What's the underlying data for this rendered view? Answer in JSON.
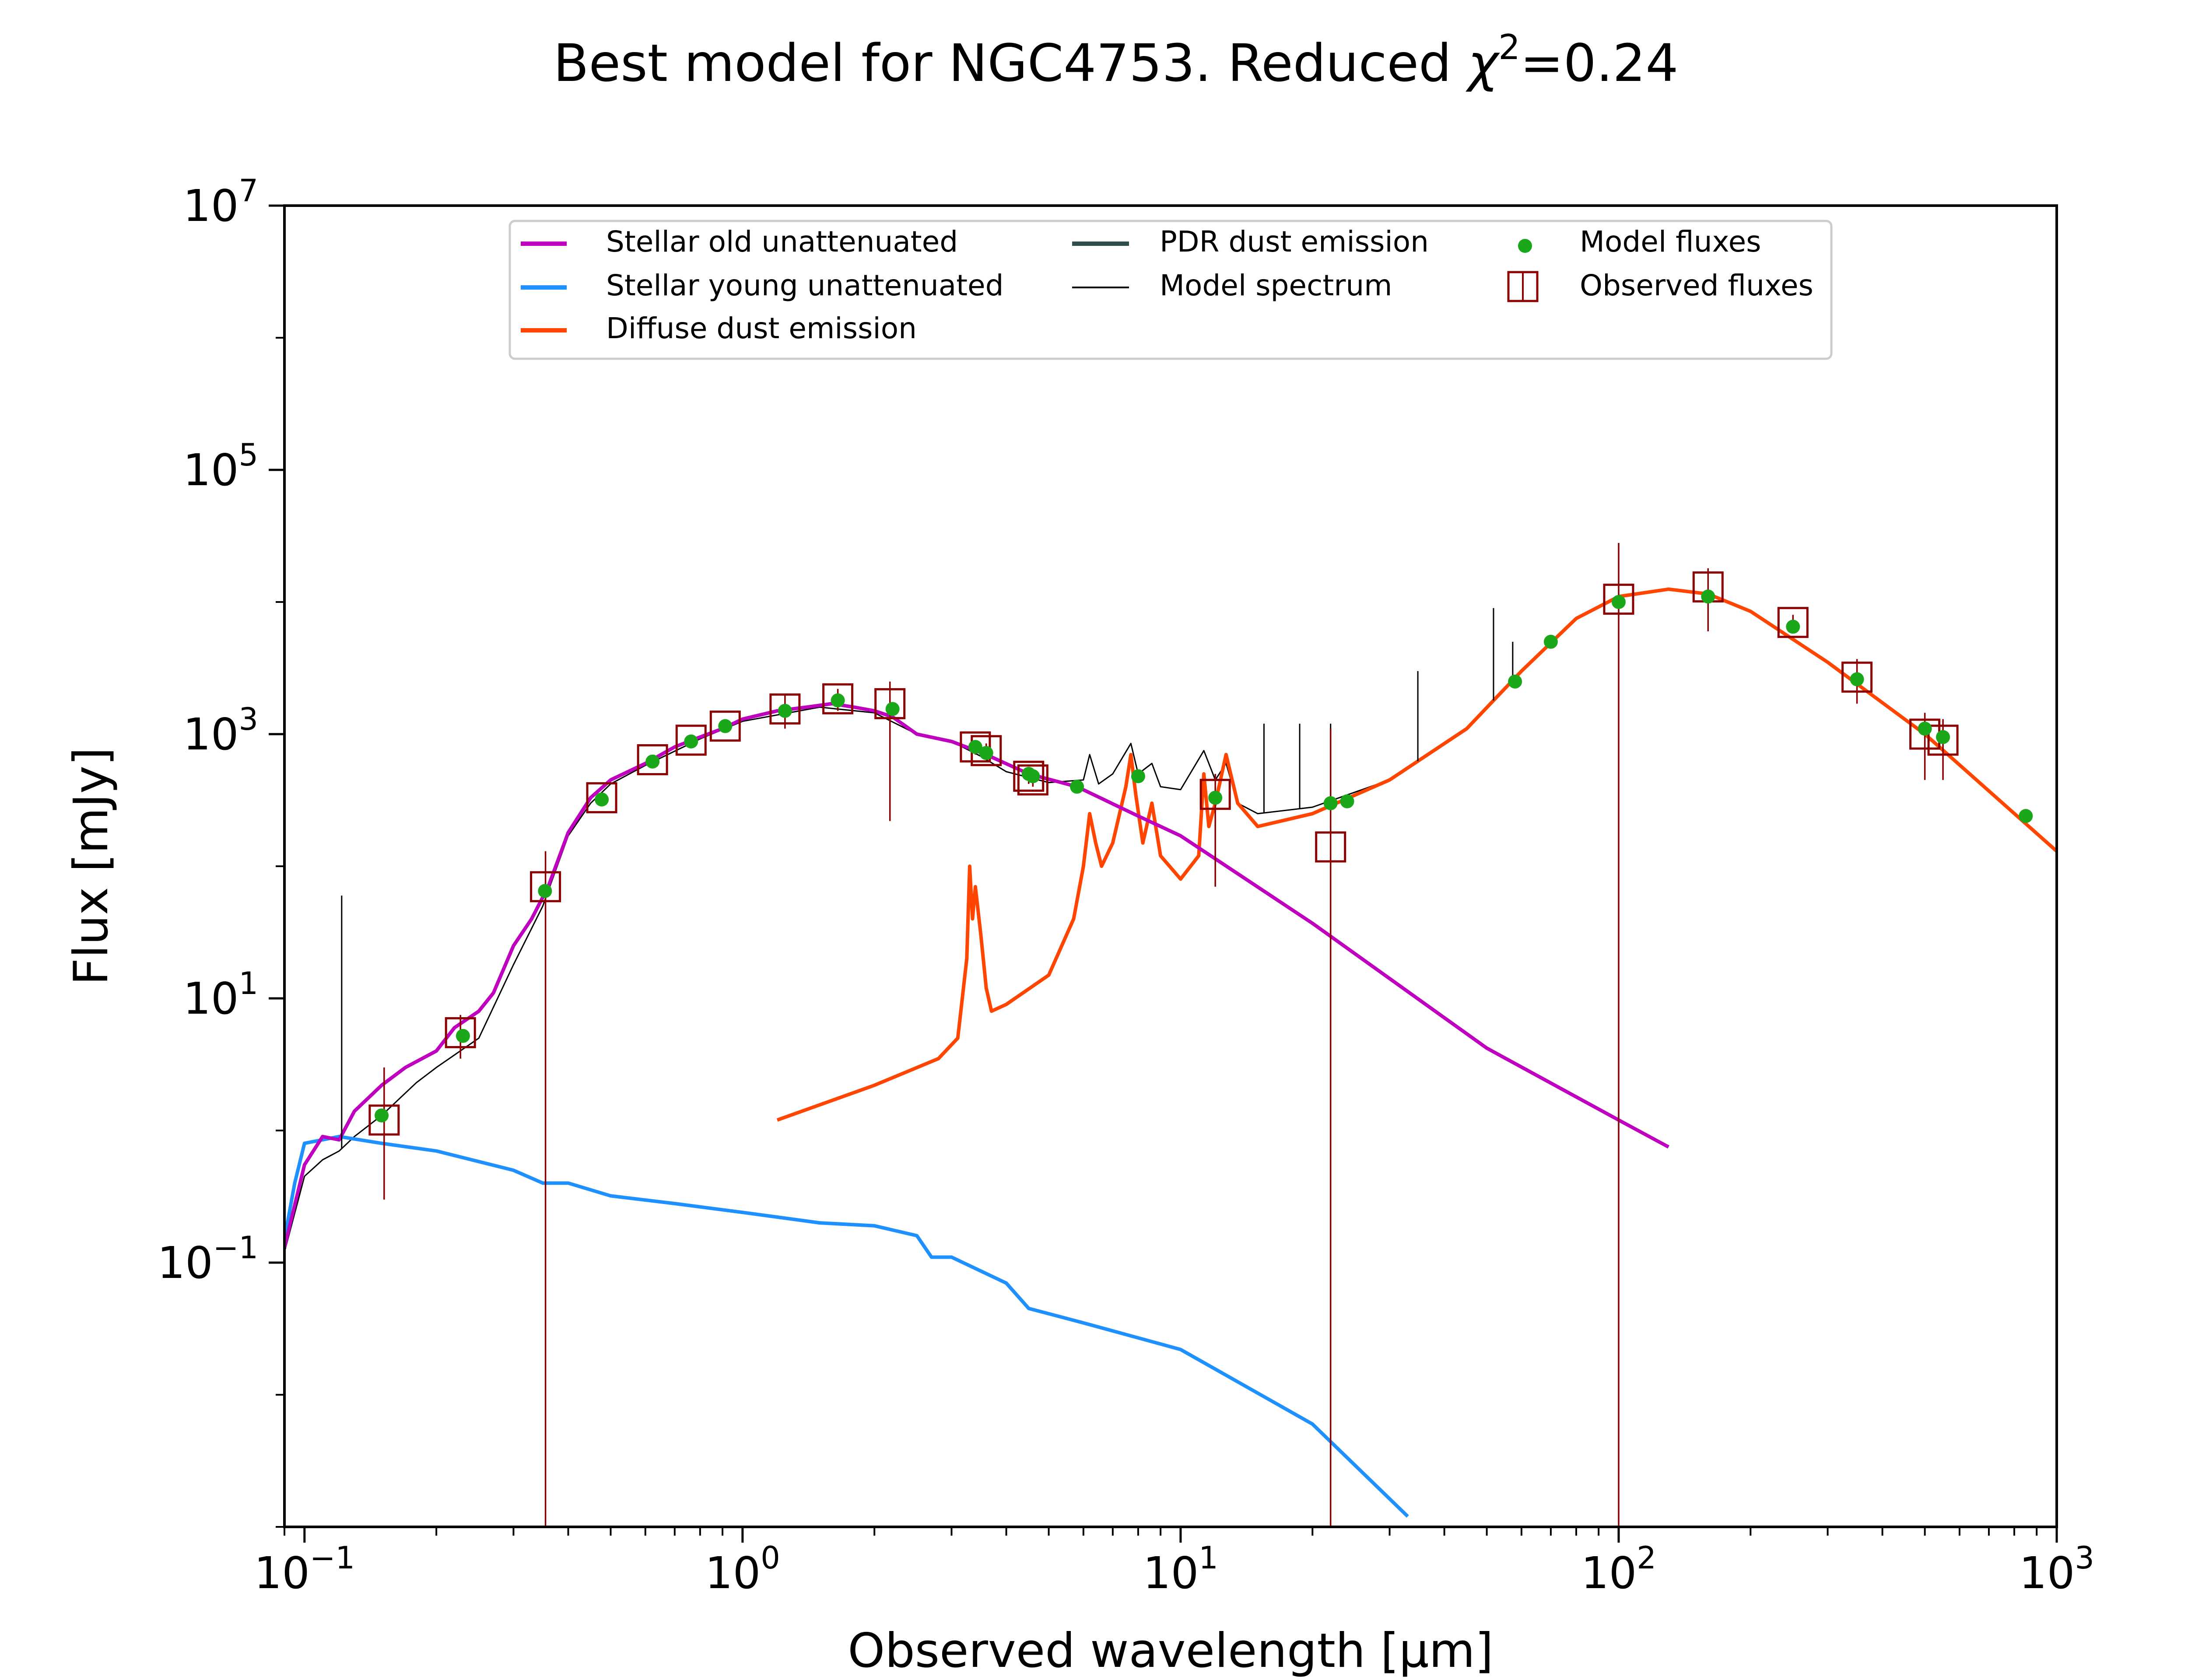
{
  "chart_data": {
    "type": "line",
    "title": "Best model for NGC4753. Reduced χ²=0.24",
    "title_parts": {
      "prefix": "Best model for NGC4753. Reduced ",
      "symbol": "χ",
      "exponent": "2",
      "suffix": "=0.24"
    },
    "xlabel": "Observed wavelength [μm]",
    "ylabel": "Flux [mJy]",
    "xscale": "log",
    "yscale": "log",
    "xlim": [
      0.09,
      1000
    ],
    "ylim": [
      0.001,
      10000000
    ],
    "x_ticks": [
      {
        "value": 0.1,
        "base": "10",
        "exp": "−1"
      },
      {
        "value": 1,
        "base": "10",
        "exp": "0"
      },
      {
        "value": 10,
        "base": "10",
        "exp": "1"
      },
      {
        "value": 100,
        "base": "10",
        "exp": "2"
      },
      {
        "value": 1000,
        "base": "10",
        "exp": "3"
      }
    ],
    "y_ticks": [
      {
        "value": 0.1,
        "base": "10",
        "exp": "−1"
      },
      {
        "value": 10,
        "base": "10",
        "exp": "1"
      },
      {
        "value": 1000,
        "base": "10",
        "exp": "3"
      },
      {
        "value": 100000,
        "base": "10",
        "exp": "5"
      },
      {
        "value": 10000000,
        "base": "10",
        "exp": "7"
      }
    ],
    "legend": {
      "placement": "top-center",
      "entries": [
        {
          "label": "Stellar old unattenuated",
          "color": "#bf00bf",
          "style": "line"
        },
        {
          "label": "Stellar young unattenuated",
          "color": "#1e90ff",
          "style": "line"
        },
        {
          "label": "Diffuse dust emission",
          "color": "#ff4500",
          "style": "line"
        },
        {
          "label": "PDR dust emission",
          "color": "#2f4f4f",
          "style": "line"
        },
        {
          "label": "Model spectrum",
          "color": "#000000",
          "style": "thin-line"
        },
        {
          "label": "Model fluxes",
          "color": "#1aa81a",
          "style": "dot"
        },
        {
          "label": "Observed fluxes",
          "color": "#8b0000",
          "style": "square"
        }
      ]
    },
    "series": [
      {
        "name": "Stellar old unattenuated",
        "color": "#bf00bf",
        "points": [
          [
            0.09,
            0.13
          ],
          [
            0.1,
            0.55
          ],
          [
            0.11,
            0.9
          ],
          [
            0.12,
            0.85
          ],
          [
            0.13,
            1.4
          ],
          [
            0.15,
            2.2
          ],
          [
            0.17,
            3
          ],
          [
            0.2,
            4
          ],
          [
            0.22,
            6
          ],
          [
            0.25,
            8
          ],
          [
            0.27,
            11
          ],
          [
            0.3,
            25
          ],
          [
            0.33,
            40
          ],
          [
            0.36,
            70
          ],
          [
            0.4,
            180
          ],
          [
            0.45,
            330
          ],
          [
            0.5,
            450
          ],
          [
            0.6,
            600
          ],
          [
            0.7,
            800
          ],
          [
            0.8,
            950
          ],
          [
            0.9,
            1100
          ],
          [
            1.0,
            1300
          ],
          [
            1.2,
            1500
          ],
          [
            1.4,
            1600
          ],
          [
            1.6,
            1700
          ],
          [
            1.8,
            1600
          ],
          [
            2.0,
            1500
          ],
          [
            2.2,
            1350
          ],
          [
            2.5,
            1000
          ],
          [
            3.0,
            880
          ],
          [
            3.6,
            700
          ],
          [
            4.5,
            500
          ],
          [
            5.8,
            400
          ],
          [
            8.0,
            240
          ],
          [
            10,
            170
          ],
          [
            20,
            37
          ],
          [
            50,
            4.2
          ],
          [
            100,
            1.2
          ],
          [
            130,
            0.75
          ]
        ]
      },
      {
        "name": "Stellar young unattenuated",
        "color": "#1e90ff",
        "points": [
          [
            0.09,
            0.15
          ],
          [
            0.095,
            0.4
          ],
          [
            0.1,
            0.8
          ],
          [
            0.12,
            0.9
          ],
          [
            0.15,
            0.8
          ],
          [
            0.2,
            0.7
          ],
          [
            0.3,
            0.5
          ],
          [
            0.35,
            0.4
          ],
          [
            0.4,
            0.4
          ],
          [
            0.5,
            0.32
          ],
          [
            0.7,
            0.28
          ],
          [
            1.0,
            0.24
          ],
          [
            1.5,
            0.2
          ],
          [
            2.0,
            0.19
          ],
          [
            2.5,
            0.16
          ],
          [
            2.7,
            0.11
          ],
          [
            3.0,
            0.11
          ],
          [
            4.0,
            0.07
          ],
          [
            4.5,
            0.045
          ],
          [
            6.0,
            0.035
          ],
          [
            10,
            0.022
          ],
          [
            20,
            0.006
          ],
          [
            33,
            0.0012
          ]
        ]
      },
      {
        "name": "Diffuse dust emission",
        "color": "#ff4500",
        "points": [
          [
            1.2,
            1.2
          ],
          [
            2.0,
            2.2
          ],
          [
            2.8,
            3.5
          ],
          [
            3.1,
            5
          ],
          [
            3.25,
            20
          ],
          [
            3.3,
            100
          ],
          [
            3.35,
            40
          ],
          [
            3.4,
            70
          ],
          [
            3.5,
            30
          ],
          [
            3.6,
            12
          ],
          [
            3.7,
            8
          ],
          [
            4.0,
            9
          ],
          [
            5.0,
            15
          ],
          [
            5.7,
            40
          ],
          [
            6.0,
            100
          ],
          [
            6.2,
            250
          ],
          [
            6.4,
            150
          ],
          [
            6.6,
            100
          ],
          [
            7.0,
            150
          ],
          [
            7.5,
            400
          ],
          [
            7.7,
            700
          ],
          [
            7.9,
            350
          ],
          [
            8.2,
            150
          ],
          [
            8.6,
            300
          ],
          [
            9.0,
            120
          ],
          [
            10,
            80
          ],
          [
            11,
            120
          ],
          [
            11.3,
            500
          ],
          [
            11.6,
            200
          ],
          [
            12,
            300
          ],
          [
            12.7,
            700
          ],
          [
            13.5,
            300
          ],
          [
            15,
            200
          ],
          [
            20,
            250
          ],
          [
            30,
            450
          ],
          [
            45,
            1100
          ],
          [
            60,
            3000
          ],
          [
            80,
            7500
          ],
          [
            100,
            11000
          ],
          [
            130,
            12500
          ],
          [
            160,
            11500
          ],
          [
            200,
            8500
          ],
          [
            300,
            3500
          ],
          [
            500,
            1000
          ],
          [
            1000,
            130
          ]
        ]
      },
      {
        "name": "Model spectrum",
        "color": "#000000",
        "points": [
          [
            0.09,
            0.12
          ],
          [
            0.1,
            0.45
          ],
          [
            0.11,
            0.6
          ],
          [
            0.12,
            0.7
          ],
          [
            0.13,
            0.9
          ],
          [
            0.15,
            1.3
          ],
          [
            0.18,
            2.3
          ],
          [
            0.2,
            3
          ],
          [
            0.25,
            5
          ],
          [
            0.3,
            18
          ],
          [
            0.35,
            50
          ],
          [
            0.4,
            170
          ],
          [
            0.45,
            300
          ],
          [
            0.5,
            420
          ],
          [
            0.6,
            580
          ],
          [
            0.8,
            920
          ],
          [
            1.0,
            1250
          ],
          [
            1.5,
            1600
          ],
          [
            2.0,
            1450
          ],
          [
            2.5,
            1000
          ],
          [
            3.0,
            880
          ],
          [
            3.5,
            680
          ],
          [
            4.0,
            520
          ],
          [
            5.0,
            430
          ],
          [
            6.0,
            450
          ],
          [
            6.2,
            700
          ],
          [
            6.5,
            420
          ],
          [
            7.0,
            500
          ],
          [
            7.7,
            850
          ],
          [
            8.0,
            500
          ],
          [
            8.6,
            600
          ],
          [
            9.0,
            400
          ],
          [
            10,
            380
          ],
          [
            11.3,
            750
          ],
          [
            12,
            450
          ],
          [
            12.7,
            600
          ],
          [
            13.5,
            300
          ],
          [
            15,
            250
          ],
          [
            20,
            280
          ],
          [
            30,
            450
          ],
          [
            45,
            1100
          ],
          [
            60,
            3000
          ],
          [
            80,
            7500
          ],
          [
            100,
            11000
          ],
          [
            130,
            12500
          ],
          [
            160,
            11500
          ],
          [
            200,
            8500
          ],
          [
            300,
            3500
          ],
          [
            500,
            1000
          ],
          [
            1000,
            130
          ]
        ]
      }
    ],
    "emission_lines": [
      {
        "x": 0.1216,
        "y": 60
      },
      {
        "x": 15.5,
        "y": 1200
      },
      {
        "x": 18.7,
        "y": 1200
      },
      {
        "x": 22.0,
        "y": 1200
      },
      {
        "x": 34.8,
        "y": 3000
      },
      {
        "x": 51.8,
        "y": 9000
      },
      {
        "x": 57.3,
        "y": 5000
      }
    ],
    "model_fluxes": [
      [
        0.15,
        1.3
      ],
      [
        0.23,
        5.2
      ],
      [
        0.354,
        65
      ],
      [
        0.477,
        320
      ],
      [
        0.623,
        620
      ],
      [
        0.763,
        880
      ],
      [
        0.913,
        1150
      ],
      [
        1.25,
        1500
      ],
      [
        1.65,
        1800
      ],
      [
        2.2,
        1550
      ],
      [
        3.4,
        800
      ],
      [
        3.6,
        720
      ],
      [
        4.5,
        500
      ],
      [
        4.6,
        480
      ],
      [
        5.8,
        400
      ],
      [
        8.0,
        480
      ],
      [
        12,
        330
      ],
      [
        22,
        300
      ],
      [
        24,
        310
      ],
      [
        58,
        2500
      ],
      [
        70,
        5000
      ],
      [
        100,
        10000
      ],
      [
        160,
        11000
      ],
      [
        250,
        6500
      ],
      [
        350,
        2600
      ],
      [
        500,
        1100
      ],
      [
        550,
        950
      ],
      [
        850,
        240
      ]
    ],
    "observed_fluxes": [
      [
        0.152,
        1.2
      ],
      [
        0.227,
        5.5
      ],
      [
        0.355,
        70
      ],
      [
        0.477,
        330
      ],
      [
        0.623,
        640
      ],
      [
        0.763,
        900
      ],
      [
        0.913,
        1150
      ],
      [
        1.25,
        1550
      ],
      [
        1.65,
        1850
      ],
      [
        2.17,
        1700
      ],
      [
        3.4,
        800
      ],
      [
        3.6,
        750
      ],
      [
        4.5,
        480
      ],
      [
        4.6,
        450
      ],
      [
        12,
        350
      ],
      [
        22,
        140
      ],
      [
        100,
        10500
      ],
      [
        160,
        13000
      ],
      [
        250,
        7000
      ],
      [
        350,
        2700
      ],
      [
        500,
        1000
      ],
      [
        550,
        900
      ]
    ],
    "error_bars": [
      [
        0.152,
        0.3,
        3
      ],
      [
        0.227,
        3.5,
        7.5
      ],
      [
        0.355,
        0.001,
        130
      ],
      [
        0.477,
        300,
        360
      ],
      [
        0.623,
        600,
        680
      ],
      [
        0.763,
        850,
        950
      ],
      [
        0.913,
        1100,
        1200
      ],
      [
        1.25,
        1100,
        2000
      ],
      [
        1.65,
        1500,
        2200
      ],
      [
        2.17,
        220,
        2500
      ],
      [
        3.4,
        700,
        900
      ],
      [
        3.6,
        650,
        850
      ],
      [
        4.5,
        420,
        540
      ],
      [
        4.6,
        400,
        500
      ],
      [
        12,
        70,
        500
      ],
      [
        22,
        0.001,
        1100
      ],
      [
        100,
        0.001,
        28000
      ],
      [
        160,
        6000,
        18000
      ],
      [
        250,
        6000,
        8000
      ],
      [
        350,
        1700,
        3700
      ],
      [
        500,
        450,
        1450
      ],
      [
        550,
        450,
        1300
      ]
    ],
    "grid": false
  }
}
